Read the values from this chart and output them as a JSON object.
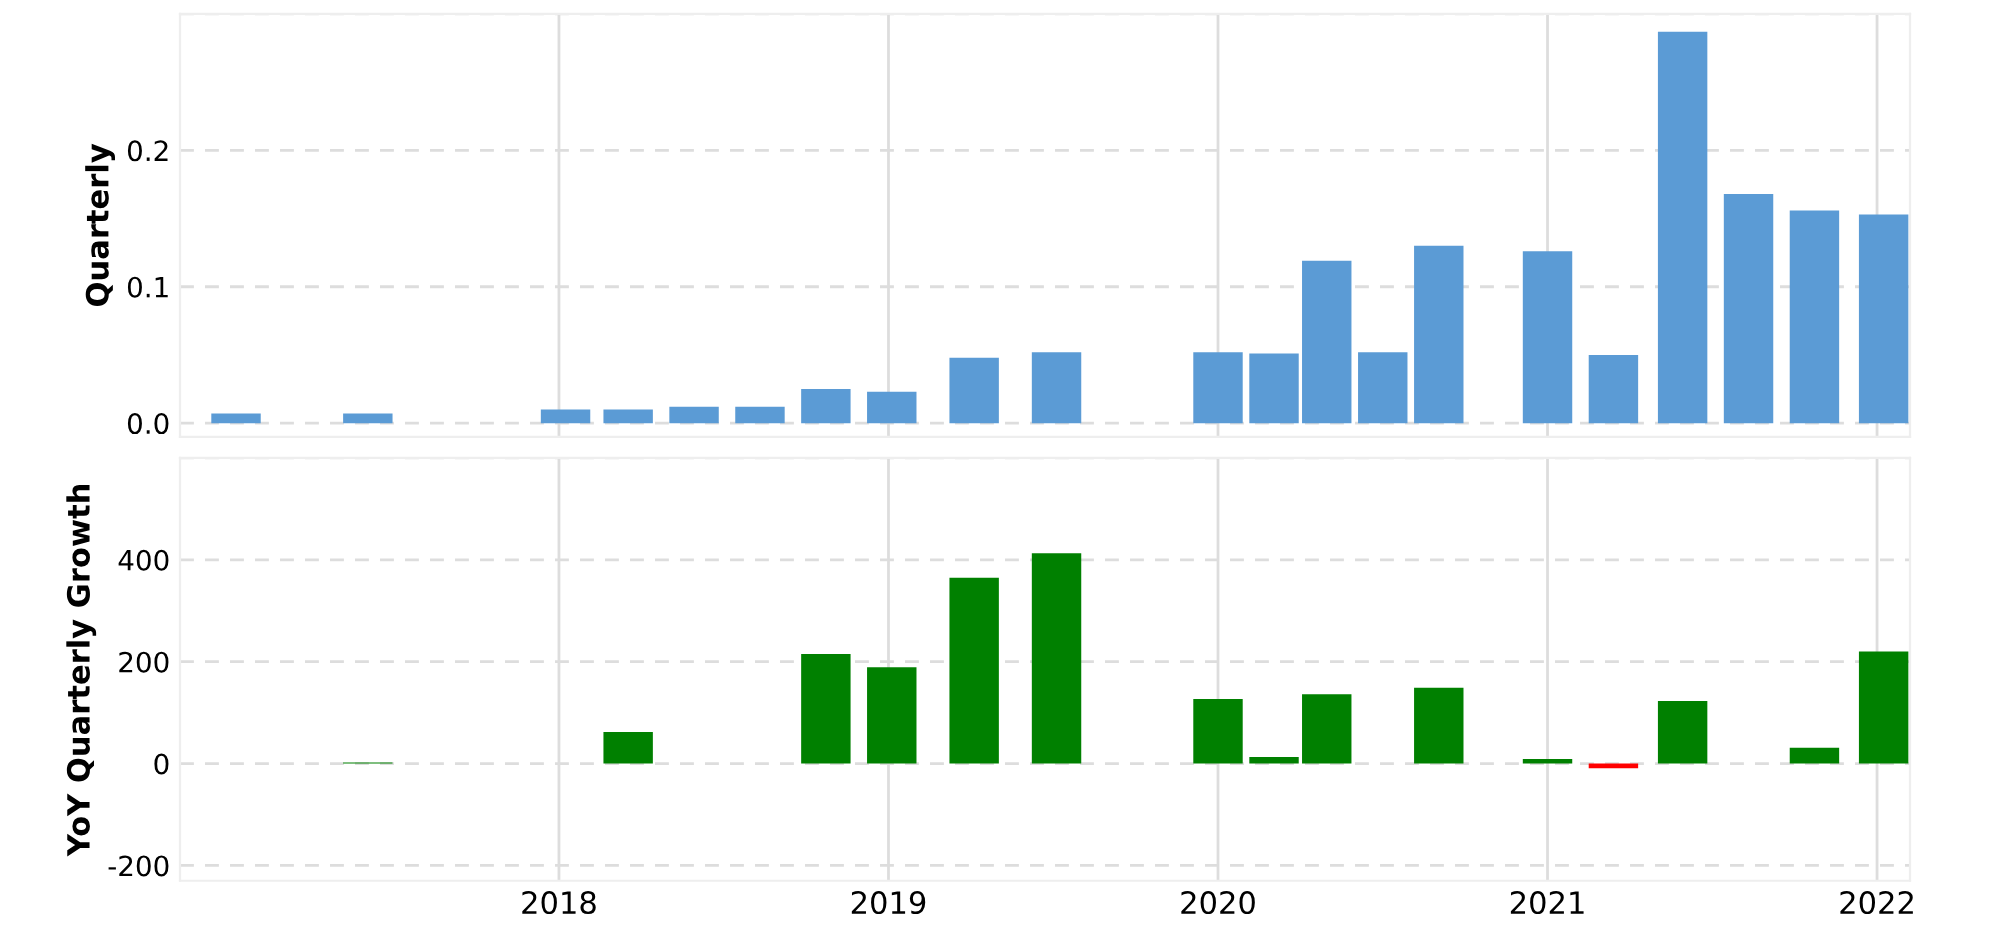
{
  "chart_data": [
    {
      "type": "bar",
      "ylabel": "Quarterly",
      "tick_labels": "y",
      "grid": true,
      "xlim": [
        2016.85,
        2022.1
      ],
      "xticks": [
        2018,
        2019,
        2020,
        2021,
        2022
      ],
      "ylim": [
        -0.01,
        0.3
      ],
      "yticks": [
        {
          "value": 0,
          "label": "0.0"
        },
        0.1,
        0.2,
        {
          "value": 0.3,
          "label": null
        }
      ],
      "series": [
        {
          "color": "#5b9bd5",
          "x": [
            2017.02,
            2017.42,
            2018.02,
            2018.21,
            2018.41,
            2018.61,
            2018.81,
            2019.01,
            2019.26,
            2019.51,
            2020.0,
            2020.17,
            2020.33,
            2020.5,
            2020.67,
            2021.0,
            2021.2,
            2021.41,
            2021.61,
            2021.81,
            2022.02
          ],
          "values": [
            0.007,
            0.007,
            0.01,
            0.01,
            0.012,
            0.012,
            0.025,
            0.023,
            0.048,
            0.052,
            0.052,
            0.051,
            0.119,
            0.052,
            0.13,
            0.126,
            0.05,
            0.287,
            0.168,
            0.156,
            0.153
          ]
        }
      ]
    },
    {
      "type": "bar",
      "ylabel": "YoY Quarterly Growth",
      "grid": true,
      "xlim": [
        2016.85,
        2022.1
      ],
      "xticks": [
        2018,
        2019,
        2020,
        2021,
        2022
      ],
      "ylim": [
        -230,
        600
      ],
      "yticks": [
        -200,
        0,
        200,
        400,
        {
          "value": 600,
          "label": null
        }
      ],
      "series": [
        {
          "x": [
            2017.42,
            2018.21,
            2018.81,
            2019.01,
            2019.26,
            2019.51,
            2020.0,
            2020.17,
            2020.33,
            2020.67,
            2021.0,
            2021.2,
            2021.41,
            2021.81,
            2022.02
          ],
          "values": [
            2,
            62,
            215,
            189,
            365,
            413,
            127,
            13,
            136,
            149,
            9,
            -9,
            123,
            31,
            220
          ],
          "colors": [
            "#008000",
            "#008000",
            "#008000",
            "#008000",
            "#008000",
            "#008000",
            "#008000",
            "#008000",
            "#008000",
            "#008000",
            "#008000",
            "#ff0000",
            "#008000",
            "#008000",
            "#008000"
          ]
        }
      ]
    }
  ]
}
